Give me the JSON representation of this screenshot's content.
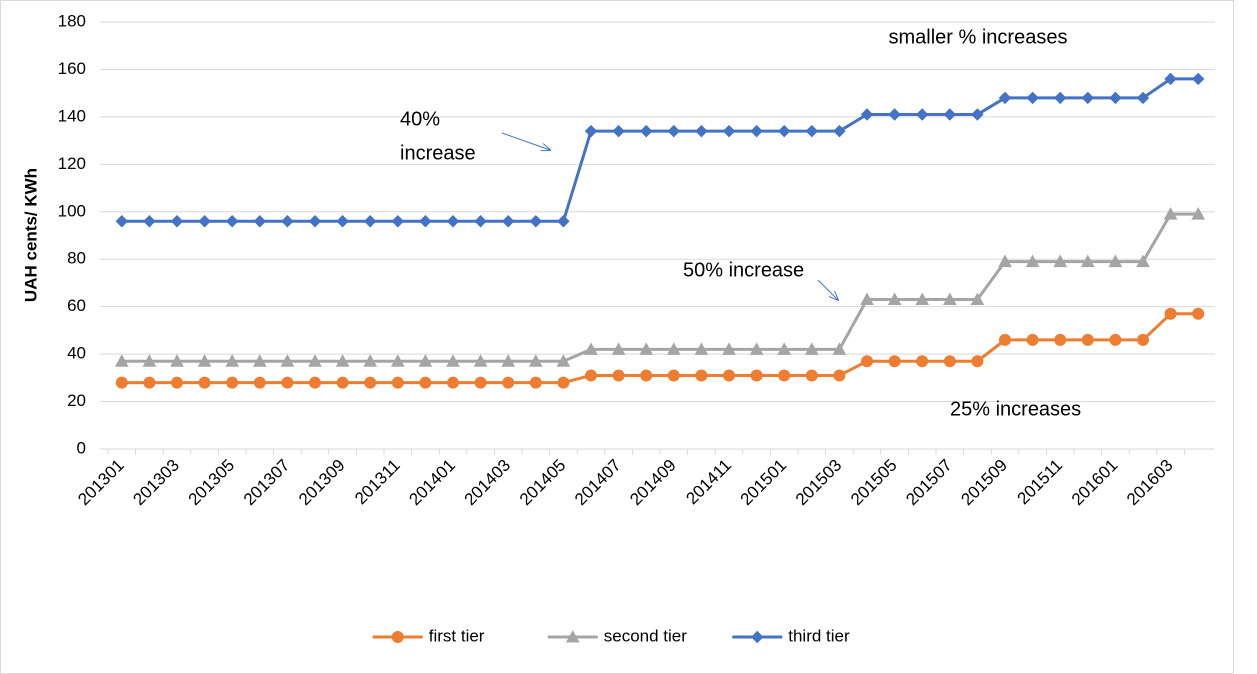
{
  "chart_data": {
    "type": "line",
    "y_label": "UAH cents/ KWh",
    "categories": [
      "201301",
      null,
      "201303",
      null,
      "201305",
      null,
      "201307",
      null,
      "201309",
      null,
      "201311",
      null,
      "201401",
      null,
      "201403",
      null,
      "201405",
      null,
      "201407",
      null,
      "201409",
      null,
      "201411",
      null,
      "201501",
      null,
      "201503",
      null,
      "201505",
      null,
      "201507",
      null,
      "201509",
      null,
      "201511",
      null,
      "201601",
      null,
      "201603",
      null
    ],
    "series": [
      {
        "name": "first tier",
        "color": "#ed7d31",
        "marker": "circle",
        "values": [
          28,
          28,
          28,
          28,
          28,
          28,
          28,
          28,
          28,
          28,
          28,
          28,
          28,
          28,
          28,
          28,
          28,
          31,
          31,
          31,
          31,
          31,
          31,
          31,
          31,
          31,
          31,
          37,
          37,
          37,
          37,
          37,
          46,
          46,
          46,
          46,
          46,
          46,
          57,
          57
        ]
      },
      {
        "name": "second tier",
        "color": "#a5a5a5",
        "marker": "triangle",
        "values": [
          37,
          37,
          37,
          37,
          37,
          37,
          37,
          37,
          37,
          37,
          37,
          37,
          37,
          37,
          37,
          37,
          37,
          42,
          42,
          42,
          42,
          42,
          42,
          42,
          42,
          42,
          42,
          63,
          63,
          63,
          63,
          63,
          79,
          79,
          79,
          79,
          79,
          79,
          99,
          99
        ]
      },
      {
        "name": "third tier",
        "color": "#4472c4",
        "marker": "diamond",
        "values": [
          96,
          96,
          96,
          96,
          96,
          96,
          96,
          96,
          96,
          96,
          96,
          96,
          96,
          96,
          96,
          96,
          96,
          134,
          134,
          134,
          134,
          134,
          134,
          134,
          134,
          134,
          134,
          141,
          141,
          141,
          141,
          141,
          148,
          148,
          148,
          148,
          148,
          148,
          156,
          156
        ]
      }
    ],
    "ylim": [
      0,
      180
    ],
    "yticks": [
      0,
      20,
      40,
      60,
      80,
      100,
      120,
      140,
      160,
      180
    ],
    "grid": true,
    "legend": "bottom",
    "annotations": [
      {
        "lines": [
          "smaller % increases"
        ]
      },
      {
        "lines": [
          "40%",
          "increase"
        ]
      },
      {
        "lines": [
          "50%  increase"
        ]
      },
      {
        "lines": [
          "25% increases"
        ]
      }
    ]
  }
}
